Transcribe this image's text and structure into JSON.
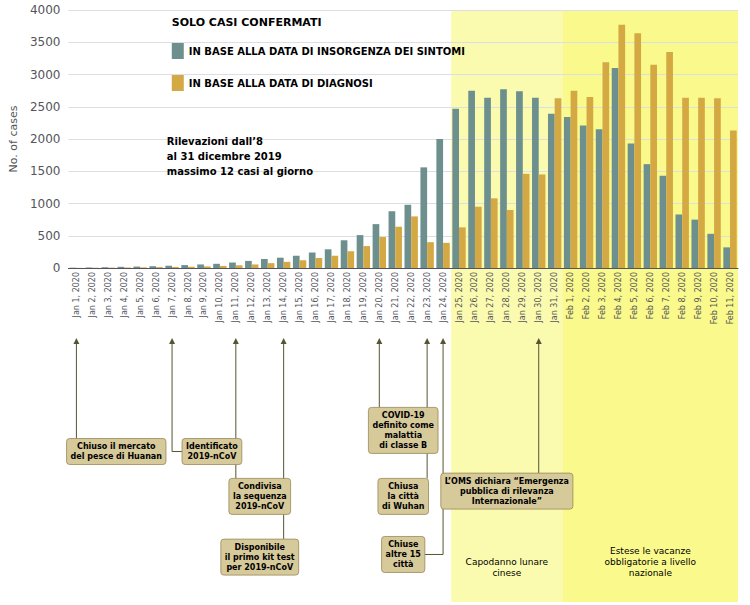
{
  "chart_data": {
    "type": "bar",
    "title": "SOLO CASI CONFERMATI",
    "note": "Rilevazioni dall’8\nal 31 dicembre 2019\nmassimo 12 casi al giorno",
    "ylabel": "No. of cases",
    "categories": [
      "Jan 1, 2020",
      "Jan 2, 2020",
      "Jan 3, 2020",
      "Jan 4, 2020",
      "Jan 5, 2020",
      "Jan 6, 2020",
      "Jan 7, 2020",
      "Jan 8, 2020",
      "Jan 9, 2020",
      "Jan 10, 2020",
      "Jan 11, 2020",
      "Jan 12, 2020",
      "Jan 13, 2020",
      "Jan 14, 2020",
      "Jan 15, 2020",
      "Jan 16, 2020",
      "Jan 17, 2020",
      "Jan 18, 2020",
      "Jan 19, 2020",
      "Jan 20, 2020",
      "Jan 21, 2020",
      "Jan 22, 2020",
      "Jan 23, 2020",
      "Jan 24, 2020",
      "Jan 25, 2020",
      "Jan 26, 2020",
      "Jan 27, 2020",
      "Jan 28, 2020",
      "Jan 29, 2020",
      "Jan 30, 2020",
      "Jan 31, 2020",
      "Feb 1, 2020",
      "Feb 2, 2020",
      "Feb 3, 2020",
      "Feb 4, 2020",
      "Feb 5, 2020",
      "Feb 6, 2020",
      "Feb 7, 2020",
      "Feb 8, 2020",
      "Feb 9, 2020",
      "Feb 10, 2020",
      "Feb 11, 2020"
    ],
    "series": [
      {
        "name": "IN BASE ALLA DATA DI INSORGENZA DEI SINTOMI",
        "color": "#6d8f8e",
        "values": [
          5,
          8,
          12,
          18,
          22,
          28,
          35,
          45,
          55,
          65,
          85,
          110,
          140,
          160,
          190,
          240,
          290,
          430,
          510,
          680,
          880,
          980,
          1560,
          2000,
          2470,
          2750,
          2640,
          2770,
          2740,
          2640,
          2390,
          2340,
          2210,
          2150,
          3100,
          1930,
          1610,
          1430,
          830,
          750,
          530,
          320
        ]
      },
      {
        "name": "IN BASE ALLA DATA DI DIAGNOSI",
        "color": "#d4a843",
        "values": [
          2,
          4,
          6,
          8,
          10,
          14,
          16,
          20,
          25,
          32,
          42,
          55,
          75,
          95,
          120,
          155,
          190,
          260,
          340,
          480,
          640,
          800,
          400,
          390,
          630,
          950,
          1080,
          900,
          1460,
          1450,
          2630,
          2750,
          2650,
          3190,
          3770,
          3640,
          3150,
          3350,
          2640,
          2640,
          2630,
          2130
        ]
      }
    ],
    "ylim": [
      0,
      4000
    ],
    "yticks": [
      0,
      500,
      1000,
      1500,
      2000,
      2500,
      3000,
      3500,
      4000
    ],
    "grid": true,
    "legend": "upper left",
    "regions": [
      {
        "label": "Capodanno lunare\ncinese",
        "start": "Jan 25, 2020",
        "end": "Jan 31, 2020",
        "color": "#f8f870"
      },
      {
        "label": "Estese le vacanze\nobbligatorie a livello\nnazionale",
        "start": "Feb 1, 2020",
        "end": "Feb 11, 2020",
        "color": "#f5f500"
      }
    ],
    "annotations": [
      {
        "text": "Chiuso il mercato\ndel pesce di Huanan",
        "x": "Jan 1, 2020"
      },
      {
        "text": "Identificato\n2019-nCoV",
        "x": "Jan 7, 2020"
      },
      {
        "text": "Condivisa\nla sequenza\n2019-nCoV",
        "x": "Jan 11, 2020"
      },
      {
        "text": "Disponibile\nil primo kit test\nper 2019-nCoV",
        "x": "Jan 14, 2020"
      },
      {
        "text": "COVID-19\ndefinito come\nmalattia\ndi classe B",
        "x": "Jan 20, 2020"
      },
      {
        "text": "Chiusa\nla città\ndi Wuhan",
        "x": "Jan 23, 2020"
      },
      {
        "text": "Chiuse\naltre 15\ncittà",
        "x": "Jan 24, 2020"
      },
      {
        "text": "L’OMS dichiara “Emergenza\npubblica di rilevanza\nInternazionale”",
        "x": "Jan 30, 2020"
      }
    ]
  }
}
